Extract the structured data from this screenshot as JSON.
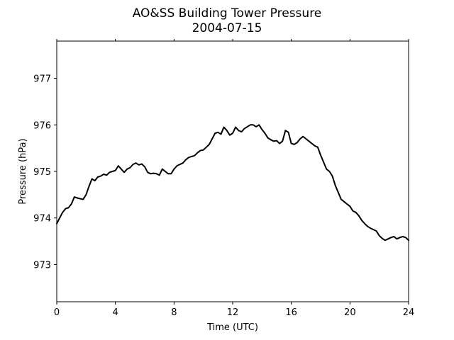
{
  "chart_data": {
    "type": "line",
    "title": "AO&SS Building Tower Pressure",
    "subtitle": "2004-07-15",
    "xlabel": "Time (UTC)",
    "ylabel": "Pressure (hPa)",
    "xlim": [
      0,
      24
    ],
    "ylim": [
      972.2,
      977.8
    ],
    "x_ticks": [
      0,
      4,
      8,
      12,
      16,
      20,
      24
    ],
    "y_ticks": [
      973,
      974,
      975,
      976,
      977
    ],
    "grid": false,
    "line_color": "#000000",
    "series": [
      {
        "x": [
          0,
          0.2,
          0.4,
          0.6,
          0.8,
          1.0,
          1.2,
          1.5,
          1.8,
          2.0,
          2.2,
          2.4,
          2.6,
          2.8,
          3.0,
          3.2,
          3.4,
          3.6,
          3.8,
          4.0,
          4.2,
          4.4,
          4.6,
          4.8,
          5.0,
          5.2,
          5.4,
          5.6,
          5.8,
          6.0,
          6.2,
          6.4,
          6.6,
          6.8,
          7.0,
          7.2,
          7.4,
          7.6,
          7.8,
          8.0,
          8.2,
          8.4,
          8.6,
          8.8,
          9.0,
          9.2,
          9.4,
          9.6,
          9.8,
          10.0,
          10.2,
          10.4,
          10.6,
          10.8,
          11.0,
          11.2,
          11.4,
          11.6,
          11.8,
          12.0,
          12.2,
          12.4,
          12.6,
          12.8,
          13.0,
          13.2,
          13.4,
          13.6,
          13.8,
          14.0,
          14.2,
          14.4,
          14.6,
          14.8,
          15.0,
          15.2,
          15.4,
          15.6,
          15.8,
          16.0,
          16.2,
          16.4,
          16.6,
          16.8,
          17.0,
          17.2,
          17.4,
          17.6,
          17.8,
          18.0,
          18.2,
          18.4,
          18.6,
          18.8,
          19.0,
          19.2,
          19.4,
          19.6,
          19.8,
          20.0,
          20.2,
          20.4,
          20.6,
          20.8,
          21.0,
          21.2,
          21.4,
          21.6,
          21.8,
          22.0,
          22.2,
          22.4,
          22.6,
          22.8,
          23.0,
          23.2,
          23.4,
          23.6,
          23.8,
          24.0
        ],
        "values": [
          973.88,
          974.0,
          974.12,
          974.2,
          974.22,
          974.3,
          974.45,
          974.42,
          974.4,
          974.5,
          974.68,
          974.84,
          974.8,
          974.88,
          974.9,
          974.94,
          974.92,
          974.98,
          975.0,
          975.02,
          975.12,
          975.05,
          974.98,
          975.05,
          975.08,
          975.15,
          975.18,
          975.14,
          975.16,
          975.1,
          974.98,
          974.95,
          974.96,
          974.95,
          974.92,
          975.05,
          975.0,
          974.95,
          974.95,
          975.05,
          975.12,
          975.15,
          975.18,
          975.25,
          975.3,
          975.32,
          975.34,
          975.4,
          975.45,
          975.46,
          975.52,
          975.58,
          975.7,
          975.82,
          975.84,
          975.8,
          975.95,
          975.88,
          975.78,
          975.82,
          975.95,
          975.88,
          975.85,
          975.92,
          975.96,
          976.0,
          976.0,
          975.96,
          976.0,
          975.9,
          975.82,
          975.72,
          975.68,
          975.65,
          975.66,
          975.6,
          975.65,
          975.88,
          975.84,
          975.6,
          975.58,
          975.62,
          975.7,
          975.75,
          975.7,
          975.65,
          975.6,
          975.55,
          975.52,
          975.35,
          975.2,
          975.05,
          975.0,
          974.9,
          974.7,
          974.55,
          974.4,
          974.35,
          974.3,
          974.25,
          974.15,
          974.12,
          974.05,
          973.95,
          973.88,
          973.82,
          973.78,
          973.75,
          973.72,
          973.62,
          973.56,
          973.52,
          973.55,
          973.58,
          973.6,
          973.55,
          973.58,
          973.6,
          973.58,
          973.52
        ]
      }
    ]
  }
}
